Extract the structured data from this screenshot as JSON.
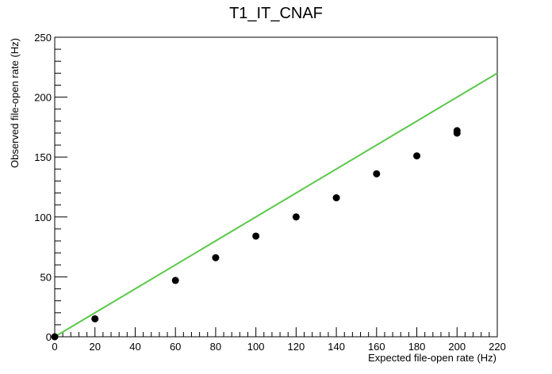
{
  "chart_data": {
    "type": "scatter",
    "title": "T1_IT_CNAF",
    "xlabel": "Expected file-open rate (Hz)",
    "ylabel": "Observed file-open rate (Hz)",
    "xlim": [
      0,
      220
    ],
    "ylim": [
      0,
      250
    ],
    "x_ticks": [
      0,
      20,
      40,
      60,
      80,
      100,
      120,
      140,
      160,
      180,
      200,
      220
    ],
    "y_ticks": [
      0,
      50,
      100,
      150,
      200,
      250
    ],
    "grid": false,
    "series": [
      {
        "type": "scatter",
        "color": "#000000",
        "points": [
          {
            "x": 0,
            "y": 0
          },
          {
            "x": 20,
            "y": 15
          },
          {
            "x": 60,
            "y": 47
          },
          {
            "x": 80,
            "y": 66
          },
          {
            "x": 100,
            "y": 84
          },
          {
            "x": 120,
            "y": 100
          },
          {
            "x": 140,
            "y": 116
          },
          {
            "x": 160,
            "y": 136
          },
          {
            "x": 180,
            "y": 151
          },
          {
            "x": 200,
            "y": 170
          },
          {
            "x": 200,
            "y": 172
          }
        ]
      },
      {
        "type": "line",
        "color": "#5ac84a",
        "points": [
          {
            "x": 0,
            "y": 0
          },
          {
            "x": 220,
            "y": 220
          }
        ]
      }
    ]
  }
}
